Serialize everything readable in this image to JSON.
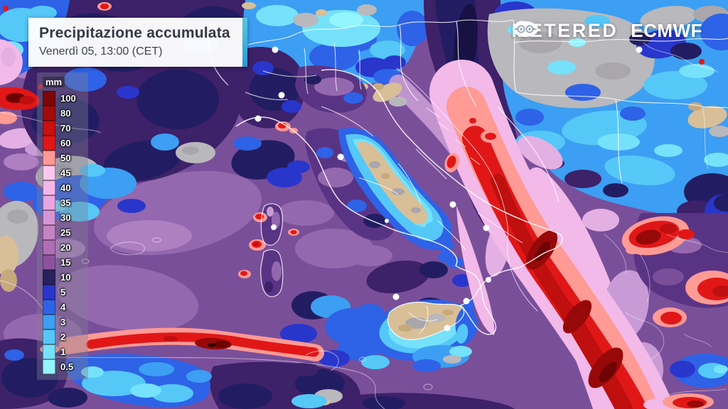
{
  "header": {
    "title": "Precipitazione accumulata",
    "subtitle": "Venerdì 05, 13:00 (CET)",
    "accent_color": "linear-gradient(180deg,#58c9e2,#2a9ad2)"
  },
  "brand": {
    "meteored_prefix": "METE",
    "meteored_suffix": "RED",
    "ecmwf": "ECMWF"
  },
  "legend": {
    "unit": "mm",
    "entries": [
      {
        "value": "100",
        "color": "#7c0707"
      },
      {
        "value": "80",
        "color": "#a30b0b"
      },
      {
        "value": "70",
        "color": "#c81010"
      },
      {
        "value": "60",
        "color": "#e11717"
      },
      {
        "value": "50",
        "color": "#ff9997"
      },
      {
        "value": "45",
        "color": "#f9c8ee"
      },
      {
        "value": "40",
        "color": "#f4b6e9"
      },
      {
        "value": "35",
        "color": "#e8a6e2"
      },
      {
        "value": "30",
        "color": "#d795d5"
      },
      {
        "value": "25",
        "color": "#c583c4"
      },
      {
        "value": "20",
        "color": "#b06eb4"
      },
      {
        "value": "15",
        "color": "#8f519f"
      },
      {
        "value": "10",
        "color": "#27215f"
      },
      {
        "value": "5",
        "color": "#2936cc"
      },
      {
        "value": "4",
        "color": "#2e62e7"
      },
      {
        "value": "3",
        "color": "#3c9ff3"
      },
      {
        "value": "2",
        "color": "#55c8f8"
      },
      {
        "value": "1",
        "color": "#75e1fa"
      },
      {
        "value": "0.5",
        "color": "#93f5fd"
      }
    ]
  },
  "palette": {
    "c05": "#93f5fd",
    "c1": "#75e1fa",
    "c2": "#55c8f8",
    "c3": "#3c9ff3",
    "c4": "#2e62e7",
    "c5": "#2936cc",
    "c10": "#221d63",
    "c10d": "#181244",
    "c15": "#3d2169",
    "c20": "#5a3484",
    "c25": "#7a4f9a",
    "c30": "#9468ae",
    "c35": "#ae7fc1",
    "c40": "#c99bd6",
    "c45": "#e4b0e3",
    "pink": "#f2b9e9",
    "salmon": "#ff9a95",
    "red": "#e11717",
    "red2": "#bf0f0f",
    "darkred": "#970909",
    "maroon": "#6e0303",
    "nearblack": "#320606",
    "gray": "#b9b8bc",
    "gray2": "#a9a7ac",
    "tan": "#d8bf98",
    "tan2": "#c6a97d"
  }
}
